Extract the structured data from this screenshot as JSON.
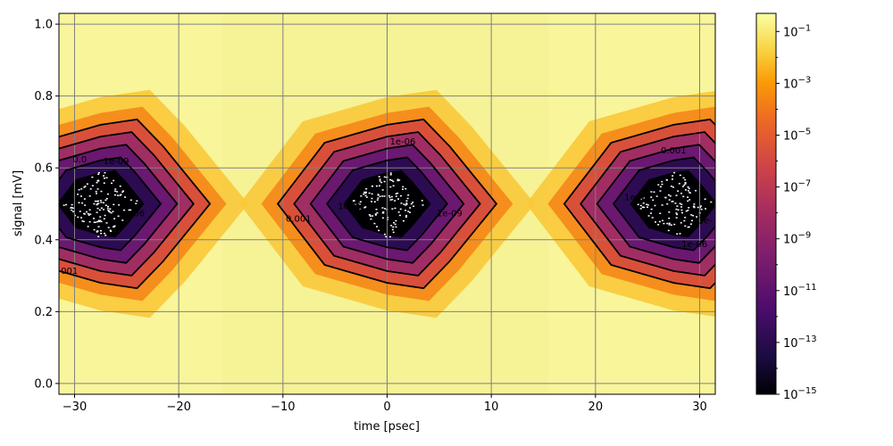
{
  "chart_data": {
    "type": "heatmap",
    "title": "",
    "xlabel": "time [psec]",
    "ylabel": "signal [mV]",
    "xlim": [
      -31.5,
      31.5
    ],
    "ylim": [
      -0.03,
      1.03
    ],
    "x_ticks": [
      -30,
      -20,
      -10,
      0,
      10,
      20,
      30
    ],
    "x_tick_labels": [
      "−30",
      "−20",
      "−10",
      "0",
      "10",
      "20",
      "30"
    ],
    "y_ticks": [
      0.0,
      0.2,
      0.4,
      0.6,
      0.8,
      1.0
    ],
    "y_tick_labels": [
      "0.0",
      "0.2",
      "0.4",
      "0.6",
      "0.8",
      "1.0"
    ],
    "grid": true,
    "colormap": "inferno",
    "colorbar": {
      "scale": "log",
      "range": [
        1e-15,
        0.5
      ],
      "tick_exponents": [
        -15,
        -13,
        -11,
        -9,
        -7,
        -5,
        -3,
        -1
      ],
      "tick_labels": [
        "10−15",
        "10−13",
        "10−11",
        "10−9",
        "10−7",
        "10−5",
        "10−3",
        "10−1"
      ]
    },
    "eye_centers_x": [
      -27.5,
      0,
      27.5
    ],
    "eye_center_y": 0.5,
    "contour_levels": [
      "0.001",
      "1e-06",
      "1e-09",
      "1e-12"
    ],
    "contour_labels": [
      {
        "text": "1e-06",
        "x": 1.5,
        "y": 0.665
      },
      {
        "text": "0.001",
        "x": -8.5,
        "y": 0.45
      },
      {
        "text": "1e-12",
        "x": -3.5,
        "y": 0.485
      },
      {
        "text": "1e-09",
        "x": 6.0,
        "y": 0.465
      },
      {
        "text": "1e-09",
        "x": -26.0,
        "y": 0.61
      },
      {
        "text": "1e-06",
        "x": -24.5,
        "y": 0.465
      },
      {
        "text": "001",
        "x": -30.5,
        "y": 0.305
      },
      {
        "text": "0.001",
        "x": 27.5,
        "y": 0.64
      },
      {
        "text": "1e-09",
        "x": 24.0,
        "y": 0.51
      },
      {
        "text": "1e-06",
        "x": 29.5,
        "y": 0.38
      },
      {
        "text": "1e-",
        "x": 30.5,
        "y": 0.445
      },
      {
        "text": "0.0",
        "x": -29.5,
        "y": 0.615
      }
    ]
  }
}
